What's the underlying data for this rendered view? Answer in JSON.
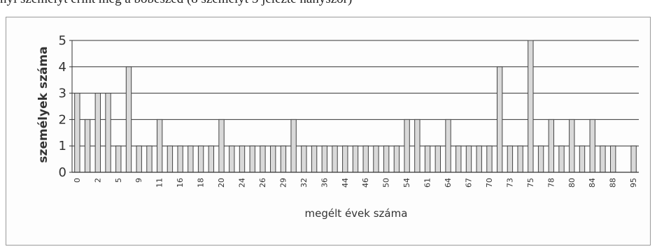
{
  "caption": "nyi személyt érint meg a bőbeszéd (8 személyt 5 jelezte hányszor)",
  "colors": {
    "bar_fill": "#d9d9d9",
    "bar_stroke": "#444444",
    "grid": "#333333",
    "axis": "#333333",
    "frame": "#9a9a9a"
  },
  "chart_data": {
    "type": "bar",
    "title": "",
    "xlabel": "megélt évek száma",
    "ylabel": "személyek száma",
    "ylim": [
      0,
      5
    ],
    "yticks": [
      0,
      1,
      2,
      3,
      4,
      5
    ],
    "grid": true,
    "legend": "none",
    "categories": [
      "0",
      "1",
      "2",
      "3",
      "5",
      "7",
      "9",
      "10",
      "11",
      "15",
      "16",
      "17",
      "18",
      "19",
      "20",
      "22",
      "24",
      "25",
      "26",
      "27",
      "29",
      "30",
      "32",
      "35",
      "36",
      "37",
      "44",
      "45",
      "46",
      "49",
      "50",
      "53",
      "54",
      "58",
      "61",
      "62",
      "64",
      "66",
      "67",
      "70",
      "71",
      "72",
      "73",
      "74",
      "75",
      "77",
      "78",
      "79",
      "80",
      "82",
      "84",
      "87",
      "88",
      "90",
      "95"
    ],
    "values": [
      3,
      2,
      3,
      3,
      1,
      4,
      1,
      1,
      2,
      1,
      1,
      1,
      1,
      1,
      2,
      1,
      1,
      1,
      1,
      1,
      1,
      2,
      1,
      1,
      1,
      1,
      1,
      1,
      1,
      1,
      1,
      1,
      2,
      2,
      1,
      1,
      2,
      1,
      1,
      1,
      1,
      4,
      1,
      1,
      5,
      1,
      2,
      1,
      2,
      1,
      2,
      1,
      1,
      0,
      1
    ],
    "tick_labels": [
      "0",
      "",
      "2",
      "",
      "5",
      "",
      "9",
      "",
      "11",
      "",
      "16",
      "",
      "18",
      "",
      "20",
      "",
      "24",
      "",
      "26",
      "",
      "29",
      "",
      "32",
      "",
      "36",
      "",
      "44",
      "",
      "46",
      "",
      "50",
      "",
      "54",
      "",
      "61",
      "",
      "64",
      "",
      "67",
      "",
      "70",
      "",
      "73",
      "",
      "75",
      "",
      "78",
      "",
      "80",
      "",
      "84",
      "",
      "88",
      "",
      "95"
    ]
  }
}
